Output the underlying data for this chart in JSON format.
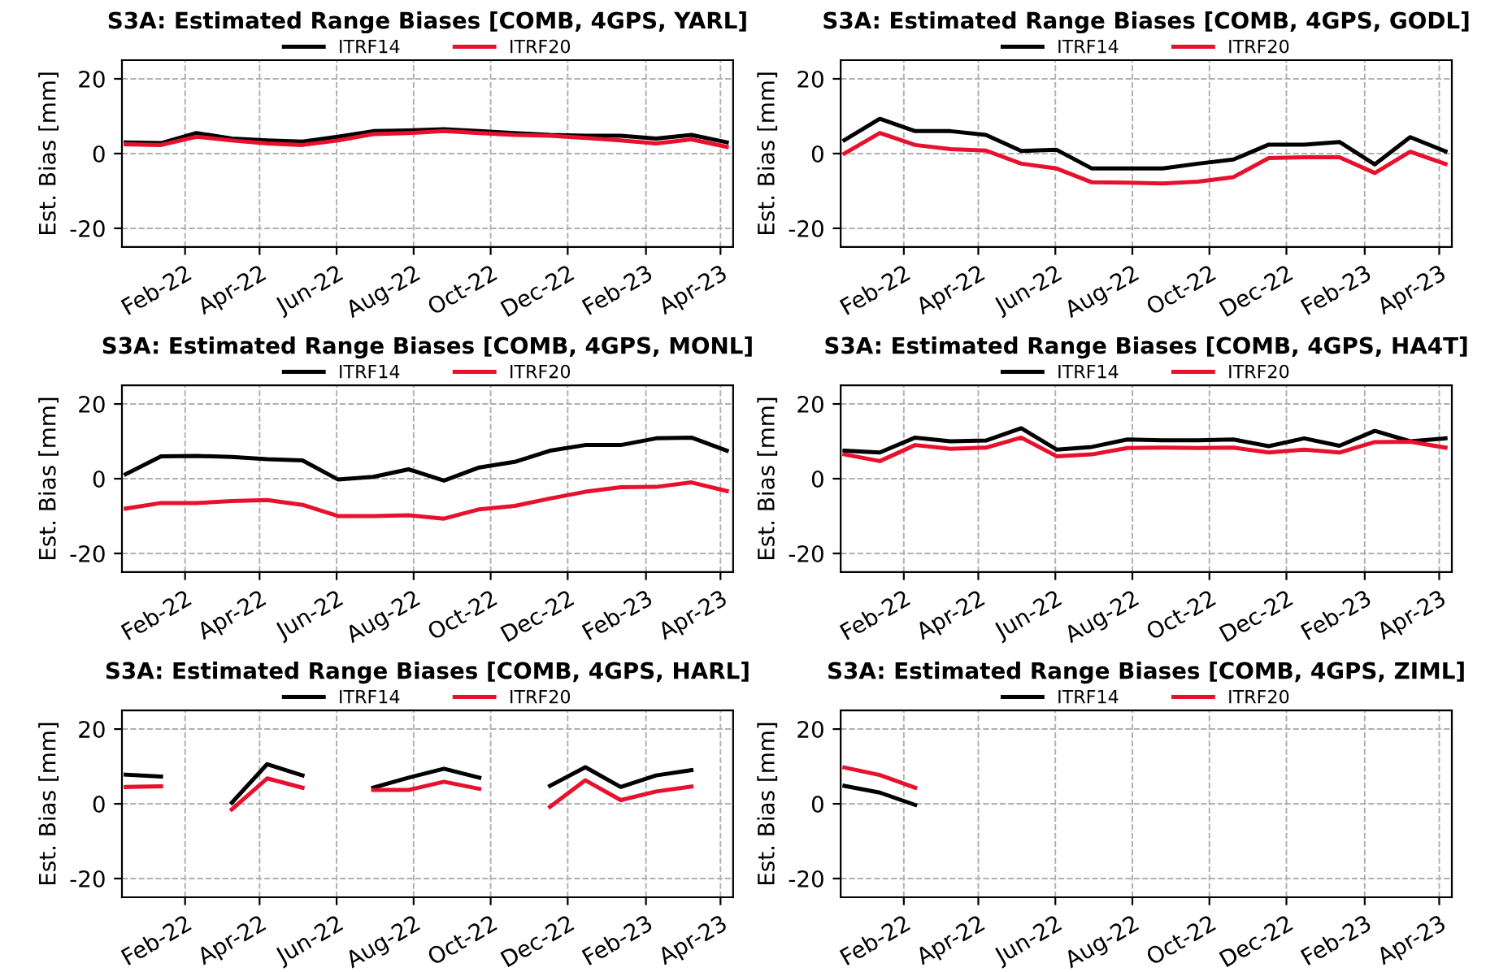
{
  "chart_data": [
    {
      "type": "line",
      "title": "S3A: Estimated Range Biases [COMB, 4GPS, YARL]",
      "ylabel": "Est. Bias [mm]",
      "x": [
        "2021-12-16",
        "2022-01-13",
        "2022-02-10",
        "2022-03-10",
        "2022-04-07",
        "2022-05-05",
        "2022-06-02",
        "2022-06-30",
        "2022-07-28",
        "2022-08-25",
        "2022-09-22",
        "2022-10-20",
        "2022-11-17",
        "2022-12-15",
        "2023-01-12",
        "2023-02-09",
        "2023-03-09",
        "2023-04-06"
      ],
      "xlim": [
        "2021-12-13",
        "2023-04-11"
      ],
      "xticks": [
        {
          "value": "2022-02-01",
          "label": "Feb-22"
        },
        {
          "value": "2022-04-01",
          "label": "Apr-22"
        },
        {
          "value": "2022-06-01",
          "label": "Jun-22"
        },
        {
          "value": "2022-08-01",
          "label": "Aug-22"
        },
        {
          "value": "2022-10-01",
          "label": "Oct-22"
        },
        {
          "value": "2022-12-01",
          "label": "Dec-22"
        },
        {
          "value": "2023-02-01",
          "label": "Feb-23"
        },
        {
          "value": "2023-04-01",
          "label": "Apr-23"
        }
      ],
      "ylim": [
        -25,
        25
      ],
      "yticks": [
        -20,
        0,
        20
      ],
      "grid": true,
      "legend": "top",
      "series": [
        {
          "name": "ITRF14",
          "color": "#000000",
          "values": [
            3,
            2.8,
            5.5,
            4,
            3.5,
            3.2,
            4.5,
            6,
            6.2,
            6.5,
            6,
            5.5,
            5,
            4.8,
            4.8,
            4,
            5,
            3
          ]
        },
        {
          "name": "ITRF20",
          "color": "#e8112d",
          "values": [
            2.5,
            2.3,
            4.5,
            3.5,
            2.7,
            2.3,
            3.5,
            5.2,
            5.5,
            6,
            5.5,
            5,
            4.8,
            4.2,
            3.5,
            2.7,
            3.8,
            1.8
          ]
        }
      ]
    },
    {
      "type": "line",
      "title": "S3A: Estimated Range Biases [COMB, 4GPS, GODL]",
      "ylabel": "Est. Bias [mm]",
      "x": [
        "2021-12-16",
        "2022-01-13",
        "2022-02-10",
        "2022-03-10",
        "2022-04-07",
        "2022-05-05",
        "2022-06-02",
        "2022-06-30",
        "2022-07-28",
        "2022-08-25",
        "2022-09-22",
        "2022-10-20",
        "2022-11-17",
        "2022-12-15",
        "2023-01-12",
        "2023-02-09",
        "2023-03-09",
        "2023-04-06"
      ],
      "xlim": [
        "2021-12-13",
        "2023-04-11"
      ],
      "xticks": [
        {
          "value": "2022-02-01",
          "label": "Feb-22"
        },
        {
          "value": "2022-04-01",
          "label": "Apr-22"
        },
        {
          "value": "2022-06-01",
          "label": "Jun-22"
        },
        {
          "value": "2022-08-01",
          "label": "Aug-22"
        },
        {
          "value": "2022-10-01",
          "label": "Oct-22"
        },
        {
          "value": "2022-12-01",
          "label": "Dec-22"
        },
        {
          "value": "2023-02-01",
          "label": "Feb-23"
        },
        {
          "value": "2023-04-01",
          "label": "Apr-23"
        }
      ],
      "ylim": [
        -25,
        25
      ],
      "yticks": [
        -20,
        0,
        20
      ],
      "grid": true,
      "legend": "top",
      "series": [
        {
          "name": "ITRF14",
          "color": "#000000",
          "values": [
            3.6,
            9.3,
            6,
            6,
            5,
            0.7,
            1,
            -4,
            -4,
            -4,
            -2.7,
            -1.6,
            2.4,
            2.4,
            3.1,
            -2.9,
            4.4,
            0.6
          ]
        },
        {
          "name": "ITRF20",
          "color": "#e8112d",
          "values": [
            0,
            5.5,
            2.3,
            1.2,
            0.8,
            -2.7,
            -4,
            -7.7,
            -7.8,
            -8,
            -7.5,
            -6.3,
            -1.2,
            -1,
            -1,
            -5.2,
            0.5,
            -2.8
          ]
        }
      ]
    },
    {
      "type": "line",
      "title": "S3A: Estimated Range Biases [COMB, 4GPS, MONL]",
      "ylabel": "Est. Bias [mm]",
      "x": [
        "2021-12-16",
        "2022-01-13",
        "2022-02-10",
        "2022-03-10",
        "2022-04-07",
        "2022-05-05",
        "2022-06-02",
        "2022-06-30",
        "2022-07-28",
        "2022-08-25",
        "2022-09-22",
        "2022-10-20",
        "2022-11-17",
        "2022-12-15",
        "2023-01-12",
        "2023-02-09",
        "2023-03-09",
        "2023-04-06"
      ],
      "xlim": [
        "2021-12-13",
        "2023-04-11"
      ],
      "xticks": [
        {
          "value": "2022-02-01",
          "label": "Feb-22"
        },
        {
          "value": "2022-04-01",
          "label": "Apr-22"
        },
        {
          "value": "2022-06-01",
          "label": "Jun-22"
        },
        {
          "value": "2022-08-01",
          "label": "Aug-22"
        },
        {
          "value": "2022-10-01",
          "label": "Oct-22"
        },
        {
          "value": "2022-12-01",
          "label": "Dec-22"
        },
        {
          "value": "2023-02-01",
          "label": "Feb-23"
        },
        {
          "value": "2023-04-01",
          "label": "Apr-23"
        }
      ],
      "ylim": [
        -25,
        25
      ],
      "yticks": [
        -20,
        0,
        20
      ],
      "grid": true,
      "legend": "top",
      "series": [
        {
          "name": "ITRF14",
          "color": "#000000",
          "values": [
            1.2,
            6,
            6.1,
            5.8,
            5.2,
            4.9,
            -0.2,
            0.5,
            2.5,
            -0.5,
            3,
            4.5,
            7.5,
            9,
            9,
            10.8,
            11,
            7.5
          ]
        },
        {
          "name": "ITRF20",
          "color": "#e8112d",
          "values": [
            -8,
            -6.5,
            -6.5,
            -6,
            -5.7,
            -7,
            -10,
            -10,
            -9.8,
            -10.7,
            -8.2,
            -7.3,
            -5.3,
            -3.5,
            -2.3,
            -2.2,
            -1,
            -3.3
          ]
        }
      ]
    },
    {
      "type": "line",
      "title": "S3A: Estimated Range Biases [COMB, 4GPS, HA4T]",
      "ylabel": "Est. Bias [mm]",
      "x": [
        "2021-12-16",
        "2022-01-13",
        "2022-02-10",
        "2022-03-10",
        "2022-04-07",
        "2022-05-05",
        "2022-06-02",
        "2022-06-30",
        "2022-07-28",
        "2022-08-25",
        "2022-09-22",
        "2022-10-20",
        "2022-11-17",
        "2022-12-15",
        "2023-01-12",
        "2023-02-09",
        "2023-03-09",
        "2023-04-06"
      ],
      "xlim": [
        "2021-12-13",
        "2023-04-11"
      ],
      "xticks": [
        {
          "value": "2022-02-01",
          "label": "Feb-22"
        },
        {
          "value": "2022-04-01",
          "label": "Apr-22"
        },
        {
          "value": "2022-06-01",
          "label": "Jun-22"
        },
        {
          "value": "2022-08-01",
          "label": "Aug-22"
        },
        {
          "value": "2022-10-01",
          "label": "Oct-22"
        },
        {
          "value": "2022-12-01",
          "label": "Dec-22"
        },
        {
          "value": "2023-02-01",
          "label": "Feb-23"
        },
        {
          "value": "2023-04-01",
          "label": "Apr-23"
        }
      ],
      "ylim": [
        -25,
        25
      ],
      "yticks": [
        -20,
        0,
        20
      ],
      "grid": true,
      "legend": "top",
      "series": [
        {
          "name": "ITRF14",
          "color": "#000000",
          "values": [
            7.5,
            7,
            11,
            10,
            10.2,
            13.5,
            7.8,
            8.5,
            10.5,
            10.3,
            10.3,
            10.5,
            8.7,
            10.8,
            8.8,
            12.8,
            10,
            10.8
          ]
        },
        {
          "name": "ITRF20",
          "color": "#e8112d",
          "values": [
            6.5,
            4.7,
            9,
            8,
            8.3,
            11,
            6,
            6.5,
            8.2,
            8.3,
            8.2,
            8.3,
            7,
            7.8,
            7,
            9.8,
            9.9,
            8.3
          ]
        }
      ]
    },
    {
      "type": "line",
      "title": "S3A: Estimated Range Biases [COMB, 4GPS, HARL]",
      "ylabel": "Est. Bias [mm]",
      "x": [
        "2021-12-16",
        "2022-01-13",
        "2022-02-10",
        "2022-03-10",
        "2022-04-07",
        "2022-05-05",
        "2022-06-02",
        "2022-06-30",
        "2022-07-28",
        "2022-08-25",
        "2022-09-22",
        "2022-10-20",
        "2022-11-17",
        "2022-12-15",
        "2023-01-12",
        "2023-02-09",
        "2023-03-09"
      ],
      "xlim": [
        "2021-12-13",
        "2023-04-11"
      ],
      "xticks": [
        {
          "value": "2022-02-01",
          "label": "Feb-22"
        },
        {
          "value": "2022-04-01",
          "label": "Apr-22"
        },
        {
          "value": "2022-06-01",
          "label": "Jun-22"
        },
        {
          "value": "2022-08-01",
          "label": "Aug-22"
        },
        {
          "value": "2022-10-01",
          "label": "Oct-22"
        },
        {
          "value": "2022-12-01",
          "label": "Dec-22"
        },
        {
          "value": "2023-02-01",
          "label": "Feb-23"
        },
        {
          "value": "2023-04-01",
          "label": "Apr-23"
        }
      ],
      "ylim": [
        -25,
        25
      ],
      "yticks": [
        -20,
        0,
        20
      ],
      "grid": true,
      "legend": "top",
      "series": [
        {
          "name": "ITRF14",
          "color": "#000000",
          "values": [
            7.8,
            7.3,
            null,
            0.3,
            10.6,
            7.6,
            null,
            4.3,
            7,
            9.4,
            7,
            null,
            4.8,
            9.8,
            4.5,
            7.6,
            9
          ]
        },
        {
          "name": "ITRF20",
          "color": "#e8112d",
          "values": [
            4.5,
            4.7,
            null,
            -1.5,
            6.8,
            4.3,
            null,
            3.7,
            3.7,
            5.9,
            4,
            null,
            -0.8,
            6.3,
            1,
            3.3,
            4.6
          ]
        }
      ]
    },
    {
      "type": "line",
      "title": "S3A: Estimated Range Biases [COMB, 4GPS, ZIML]",
      "ylabel": "Est. Bias [mm]",
      "x": [
        "2021-12-16",
        "2022-01-13",
        "2022-02-10"
      ],
      "xlim": [
        "2021-12-13",
        "2023-04-11"
      ],
      "xticks": [
        {
          "value": "2022-02-01",
          "label": "Feb-22"
        },
        {
          "value": "2022-04-01",
          "label": "Apr-22"
        },
        {
          "value": "2022-06-01",
          "label": "Jun-22"
        },
        {
          "value": "2022-08-01",
          "label": "Aug-22"
        },
        {
          "value": "2022-10-01",
          "label": "Oct-22"
        },
        {
          "value": "2022-12-01",
          "label": "Dec-22"
        },
        {
          "value": "2023-02-01",
          "label": "Feb-23"
        },
        {
          "value": "2023-04-01",
          "label": "Apr-23"
        }
      ],
      "ylim": [
        -25,
        25
      ],
      "yticks": [
        -20,
        0,
        20
      ],
      "grid": true,
      "legend": "top",
      "series": [
        {
          "name": "ITRF14",
          "color": "#000000",
          "values": [
            4.8,
            3,
            -0.3
          ]
        },
        {
          "name": "ITRF20",
          "color": "#e8112d",
          "values": [
            9.7,
            7.7,
            4.3
          ]
        }
      ]
    }
  ]
}
